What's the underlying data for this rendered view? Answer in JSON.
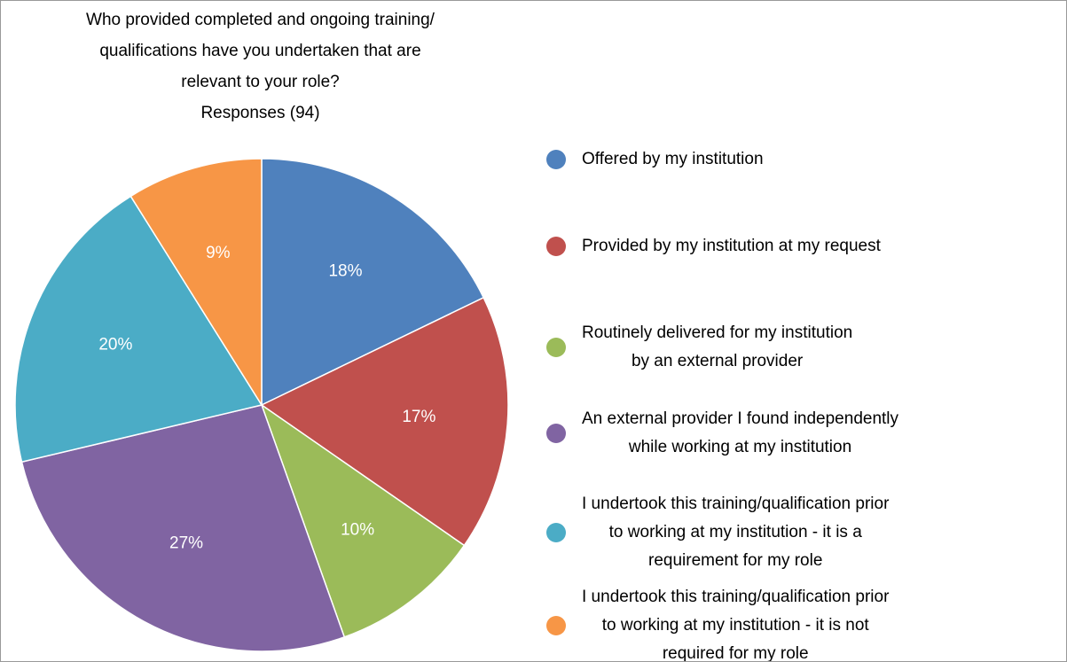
{
  "chart_data": {
    "type": "pie",
    "title": "Who provided completed and ongoing training/\nqualifications have you undertaken that are\nrelevant to your role?",
    "subtitle": "Responses (94)",
    "categories": [
      "Offered by my institution",
      "Provided by my institution at my request",
      "Routinely delivered for my institution\nby an external provider",
      "An external provider I found independently\nwhile working at my institution",
      "I undertook this training/qualification prior\nto working at my institution - it is a\nrequirement for my role",
      "I undertook this training/qualification prior\nto working at my institution - it is not\nrequired for my role"
    ],
    "values": [
      18,
      17,
      10,
      27,
      20,
      9
    ],
    "value_labels": [
      "18%",
      "17%",
      "10%",
      "27%",
      "20%",
      "9%"
    ],
    "colors": [
      "#4f81bd",
      "#c0504d",
      "#9bbb59",
      "#8064a2",
      "#4bacc6",
      "#f79646"
    ],
    "legend": "right"
  }
}
